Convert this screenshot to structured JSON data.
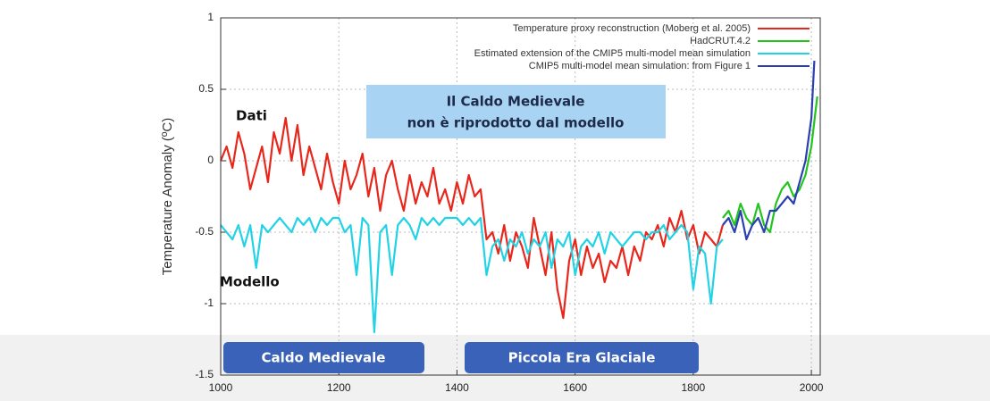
{
  "chart_data": {
    "type": "line",
    "ylabel": "Temperature Anomaly (ºC)",
    "xlim": [
      1000,
      2015
    ],
    "ylim": [
      -1.5,
      1
    ],
    "xticks": [
      1000,
      1200,
      1400,
      1600,
      1800,
      2000
    ],
    "yticks": [
      -1.5,
      -1,
      -0.5,
      0,
      0.5,
      1
    ],
    "grid": true,
    "legend": "upper right",
    "annotations": [
      "Il Caldo Medievale",
      "non è riprodotto dal modello",
      "Dati",
      "Modello",
      "Caldo Medievale",
      "Piccola Era Glaciale"
    ],
    "series": [
      {
        "name": "Temperature proxy reconstruction (Moberg et al. 2005)",
        "color": "#e8271c",
        "x": [
          1000,
          1010,
          1020,
          1030,
          1040,
          1050,
          1060,
          1070,
          1080,
          1090,
          1100,
          1110,
          1120,
          1130,
          1140,
          1150,
          1160,
          1170,
          1180,
          1190,
          1200,
          1210,
          1220,
          1230,
          1240,
          1250,
          1260,
          1270,
          1280,
          1290,
          1300,
          1310,
          1320,
          1330,
          1340,
          1350,
          1360,
          1370,
          1380,
          1390,
          1400,
          1410,
          1420,
          1430,
          1440,
          1450,
          1460,
          1470,
          1480,
          1490,
          1500,
          1510,
          1520,
          1530,
          1540,
          1550,
          1560,
          1570,
          1580,
          1590,
          1600,
          1610,
          1620,
          1630,
          1640,
          1650,
          1660,
          1670,
          1680,
          1690,
          1700,
          1710,
          1720,
          1730,
          1740,
          1750,
          1760,
          1770,
          1780,
          1790,
          1800,
          1810,
          1820,
          1830,
          1840,
          1850
        ],
        "values": [
          0.0,
          0.1,
          -0.05,
          0.2,
          0.05,
          -0.2,
          -0.05,
          0.1,
          -0.15,
          0.2,
          0.05,
          0.3,
          0.0,
          0.25,
          -0.1,
          0.1,
          -0.05,
          -0.2,
          0.05,
          -0.15,
          -0.3,
          0.0,
          -0.2,
          -0.1,
          0.05,
          -0.25,
          -0.05,
          -0.35,
          -0.1,
          0.0,
          -0.2,
          -0.35,
          -0.1,
          -0.3,
          -0.15,
          -0.25,
          -0.05,
          -0.3,
          -0.2,
          -0.35,
          -0.15,
          -0.3,
          -0.1,
          -0.25,
          -0.2,
          -0.55,
          -0.5,
          -0.65,
          -0.45,
          -0.7,
          -0.5,
          -0.6,
          -0.75,
          -0.4,
          -0.6,
          -0.8,
          -0.5,
          -0.9,
          -1.1,
          -0.7,
          -0.55,
          -0.8,
          -0.6,
          -0.75,
          -0.65,
          -0.85,
          -0.7,
          -0.75,
          -0.6,
          -0.8,
          -0.6,
          -0.7,
          -0.5,
          -0.55,
          -0.45,
          -0.6,
          -0.4,
          -0.5,
          -0.35,
          -0.55,
          -0.45,
          -0.65,
          -0.5,
          -0.55,
          -0.6,
          -0.45
        ]
      },
      {
        "name": "HadCRUT.4.2",
        "color": "#22c41e",
        "x": [
          1850,
          1860,
          1870,
          1880,
          1890,
          1900,
          1910,
          1920,
          1930,
          1940,
          1950,
          1960,
          1970,
          1980,
          1990,
          2000,
          2010
        ],
        "values": [
          -0.4,
          -0.35,
          -0.45,
          -0.3,
          -0.4,
          -0.45,
          -0.3,
          -0.45,
          -0.5,
          -0.3,
          -0.2,
          -0.15,
          -0.25,
          -0.2,
          -0.1,
          0.1,
          0.45
        ]
      },
      {
        "name": "Estimated extension of the CMIP5 multi-model mean simulation",
        "color": "#22d3e6",
        "x": [
          1000,
          1010,
          1020,
          1030,
          1040,
          1050,
          1060,
          1070,
          1080,
          1090,
          1100,
          1110,
          1120,
          1130,
          1140,
          1150,
          1160,
          1170,
          1180,
          1190,
          1200,
          1210,
          1220,
          1230,
          1240,
          1250,
          1260,
          1270,
          1280,
          1290,
          1300,
          1310,
          1320,
          1330,
          1340,
          1350,
          1360,
          1370,
          1380,
          1390,
          1400,
          1410,
          1420,
          1430,
          1440,
          1450,
          1460,
          1470,
          1480,
          1490,
          1500,
          1510,
          1520,
          1530,
          1540,
          1550,
          1560,
          1570,
          1580,
          1590,
          1600,
          1610,
          1620,
          1630,
          1640,
          1650,
          1660,
          1670,
          1680,
          1690,
          1700,
          1710,
          1720,
          1730,
          1740,
          1750,
          1760,
          1770,
          1780,
          1790,
          1800,
          1810,
          1820,
          1830,
          1840,
          1850
        ],
        "values": [
          -0.45,
          -0.5,
          -0.55,
          -0.45,
          -0.6,
          -0.45,
          -0.75,
          -0.45,
          -0.5,
          -0.45,
          -0.4,
          -0.45,
          -0.5,
          -0.4,
          -0.45,
          -0.4,
          -0.5,
          -0.4,
          -0.45,
          -0.4,
          -0.4,
          -0.5,
          -0.45,
          -0.8,
          -0.4,
          -0.45,
          -1.2,
          -0.5,
          -0.45,
          -0.8,
          -0.45,
          -0.4,
          -0.45,
          -0.55,
          -0.4,
          -0.45,
          -0.4,
          -0.45,
          -0.4,
          -0.4,
          -0.4,
          -0.45,
          -0.4,
          -0.45,
          -0.4,
          -0.8,
          -0.6,
          -0.55,
          -0.7,
          -0.55,
          -0.6,
          -0.5,
          -0.65,
          -0.55,
          -0.6,
          -0.5,
          -0.75,
          -0.55,
          -0.6,
          -0.5,
          -0.8,
          -0.6,
          -0.55,
          -0.6,
          -0.5,
          -0.65,
          -0.5,
          -0.55,
          -0.6,
          -0.55,
          -0.5,
          -0.5,
          -0.55,
          -0.5,
          -0.5,
          -0.45,
          -0.55,
          -0.5,
          -0.45,
          -0.5,
          -0.9,
          -0.6,
          -0.65,
          -1.0,
          -0.6,
          -0.55
        ]
      },
      {
        "name": "CMIP5 multi-model mean simulation: from Figure 1",
        "color": "#2a3fb0",
        "x": [
          1850,
          1860,
          1870,
          1880,
          1890,
          1900,
          1910,
          1920,
          1930,
          1940,
          1950,
          1960,
          1970,
          1980,
          1990,
          2000,
          2005
        ],
        "values": [
          -0.45,
          -0.4,
          -0.5,
          -0.35,
          -0.55,
          -0.45,
          -0.4,
          -0.5,
          -0.35,
          -0.35,
          -0.3,
          -0.25,
          -0.3,
          -0.15,
          0.0,
          0.3,
          0.7
        ]
      }
    ]
  }
}
